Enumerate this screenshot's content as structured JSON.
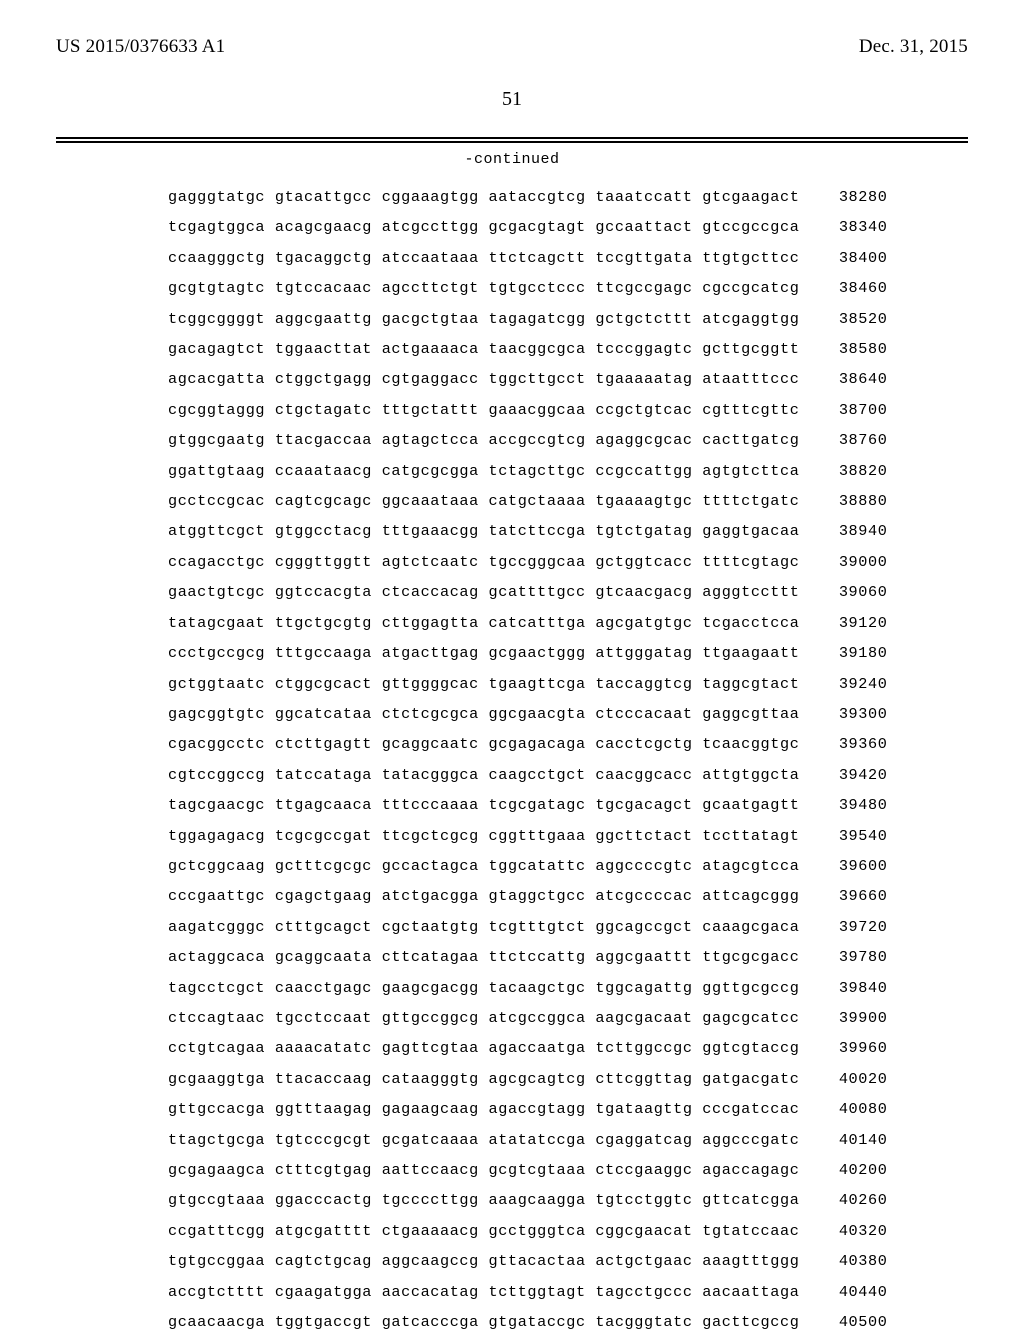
{
  "header": {
    "pub_number": "US 2015/0376633 A1",
    "pub_date": "Dec. 31, 2015"
  },
  "page_number": "51",
  "continued_label": "-continued",
  "sequence": {
    "group_len": 10,
    "groups_per_row": 6,
    "rows": [
      {
        "groups": [
          "gagggtatgc",
          "gtacattgcc",
          "cggaaagtgg",
          "aataccgtcg",
          "taaatccatt",
          "gtcgaagact"
        ],
        "pos": 38280
      },
      {
        "groups": [
          "tcgagtggca",
          "acagcgaacg",
          "atcgccttgg",
          "gcgacgtagt",
          "gccaattact",
          "gtccgccgca"
        ],
        "pos": 38340
      },
      {
        "groups": [
          "ccaagggctg",
          "tgacaggctg",
          "atccaataaa",
          "ttctcagctt",
          "tccgttgata",
          "ttgtgcttcc"
        ],
        "pos": 38400
      },
      {
        "groups": [
          "gcgtgtagtc",
          "tgtccacaac",
          "agccttctgt",
          "tgtgcctccc",
          "ttcgccgagc",
          "cgccgcatcg"
        ],
        "pos": 38460
      },
      {
        "groups": [
          "tcggcggggt",
          "aggcgaattg",
          "gacgctgtaa",
          "tagagatcgg",
          "gctgctcttt",
          "atcgaggtgg"
        ],
        "pos": 38520
      },
      {
        "groups": [
          "gacagagtct",
          "tggaacttat",
          "actgaaaaca",
          "taacggcgca",
          "tcccggagtc",
          "gcttgcggtt"
        ],
        "pos": 38580
      },
      {
        "groups": [
          "agcacgatta",
          "ctggctgagg",
          "cgtgaggacc",
          "tggcttgcct",
          "tgaaaaatag",
          "ataatttccc"
        ],
        "pos": 38640
      },
      {
        "groups": [
          "cgcggtaggg",
          "ctgctagatc",
          "tttgctattt",
          "gaaacggcaa",
          "ccgctgtcac",
          "cgtttcgttc"
        ],
        "pos": 38700
      },
      {
        "groups": [
          "gtggcgaatg",
          "ttacgaccaa",
          "agtagctcca",
          "accgccgtcg",
          "agaggcgcac",
          "cacttgatcg"
        ],
        "pos": 38760
      },
      {
        "groups": [
          "ggattgtaag",
          "ccaaataacg",
          "catgcgcgga",
          "tctagcttgc",
          "ccgccattgg",
          "agtgtcttca"
        ],
        "pos": 38820
      },
      {
        "groups": [
          "gcctccgcac",
          "cagtcgcagc",
          "ggcaaataaa",
          "catgctaaaa",
          "tgaaaagtgc",
          "ttttctgatc"
        ],
        "pos": 38880
      },
      {
        "groups": [
          "atggttcgct",
          "gtggcctacg",
          "tttgaaacgg",
          "tatcttccga",
          "tgtctgatag",
          "gaggtgacaa"
        ],
        "pos": 38940
      },
      {
        "groups": [
          "ccagacctgc",
          "cgggttggtt",
          "agtctcaatc",
          "tgccgggcaa",
          "gctggtcacc",
          "ttttcgtagc"
        ],
        "pos": 39000
      },
      {
        "groups": [
          "gaactgtcgc",
          "ggtccacgta",
          "ctcaccacag",
          "gcattttgcc",
          "gtcaacgacg",
          "agggtccttt"
        ],
        "pos": 39060
      },
      {
        "groups": [
          "tatagcgaat",
          "ttgctgcgtg",
          "cttggagtta",
          "catcatttga",
          "agcgatgtgc",
          "tcgacctcca"
        ],
        "pos": 39120
      },
      {
        "groups": [
          "ccctgccgcg",
          "tttgccaaga",
          "atgacttgag",
          "gcgaactggg",
          "attgggatag",
          "ttgaagaatt"
        ],
        "pos": 39180
      },
      {
        "groups": [
          "gctggtaatc",
          "ctggcgcact",
          "gttggggcac",
          "tgaagttcga",
          "taccaggtcg",
          "taggcgtact"
        ],
        "pos": 39240
      },
      {
        "groups": [
          "gagcggtgtc",
          "ggcatcataa",
          "ctctcgcgca",
          "ggcgaacgta",
          "ctcccacaat",
          "gaggcgttaa"
        ],
        "pos": 39300
      },
      {
        "groups": [
          "cgacggcctc",
          "ctcttgagtt",
          "gcaggcaatc",
          "gcgagacaga",
          "cacctcgctg",
          "tcaacggtgc"
        ],
        "pos": 39360
      },
      {
        "groups": [
          "cgtccggccg",
          "tatccataga",
          "tatacgggca",
          "caagcctgct",
          "caacggcacc",
          "attgtggcta"
        ],
        "pos": 39420
      },
      {
        "groups": [
          "tagcgaacgc",
          "ttgagcaaca",
          "tttcccaaaa",
          "tcgcgatagc",
          "tgcgacagct",
          "gcaatgagtt"
        ],
        "pos": 39480
      },
      {
        "groups": [
          "tggagagacg",
          "tcgcgccgat",
          "ttcgctcgcg",
          "cggtttgaaa",
          "ggcttctact",
          "tccttatagt"
        ],
        "pos": 39540
      },
      {
        "groups": [
          "gctcggcaag",
          "gctttcgcgc",
          "gccactagca",
          "tggcatattc",
          "aggccccgtc",
          "atagcgtcca"
        ],
        "pos": 39600
      },
      {
        "groups": [
          "cccgaattgc",
          "cgagctgaag",
          "atctgacgga",
          "gtaggctgcc",
          "atcgccccac",
          "attcagcggg"
        ],
        "pos": 39660
      },
      {
        "groups": [
          "aagatcgggc",
          "ctttgcagct",
          "cgctaatgtg",
          "tcgtttgtct",
          "ggcagccgct",
          "caaagcgaca"
        ],
        "pos": 39720
      },
      {
        "groups": [
          "actaggcaca",
          "gcaggcaata",
          "cttcatagaa",
          "ttctccattg",
          "aggcgaattt",
          "ttgcgcgacc"
        ],
        "pos": 39780
      },
      {
        "groups": [
          "tagcctcgct",
          "caacctgagc",
          "gaagcgacgg",
          "tacaagctgc",
          "tggcagattg",
          "ggttgcgccg"
        ],
        "pos": 39840
      },
      {
        "groups": [
          "ctccagtaac",
          "tgcctccaat",
          "gttgccggcg",
          "atcgccggca",
          "aagcgacaat",
          "gagcgcatcc"
        ],
        "pos": 39900
      },
      {
        "groups": [
          "cctgtcagaa",
          "aaaacatatc",
          "gagttcgtaa",
          "agaccaatga",
          "tcttggccgc",
          "ggtcgtaccg"
        ],
        "pos": 39960
      },
      {
        "groups": [
          "gcgaaggtga",
          "ttacaccaag",
          "cataagggtg",
          "agcgcagtcg",
          "cttcggttag",
          "gatgacgatc"
        ],
        "pos": 40020
      },
      {
        "groups": [
          "gttgccacga",
          "ggtttaagag",
          "gagaagcaag",
          "agaccgtagg",
          "tgataagttg",
          "cccgatccac"
        ],
        "pos": 40080
      },
      {
        "groups": [
          "ttagctgcga",
          "tgtcccgcgt",
          "gcgatcaaaa",
          "atatatccga",
          "cgaggatcag",
          "aggcccgatc"
        ],
        "pos": 40140
      },
      {
        "groups": [
          "gcgagaagca",
          "ctttcgtgag",
          "aattccaacg",
          "gcgtcgtaaa",
          "ctccgaaggc",
          "agaccagagc"
        ],
        "pos": 40200
      },
      {
        "groups": [
          "gtgccgtaaa",
          "ggacccactg",
          "tgccccttgg",
          "aaagcaagga",
          "tgtcctggtc",
          "gttcatcgga"
        ],
        "pos": 40260
      },
      {
        "groups": [
          "ccgatttcgg",
          "atgcgatttt",
          "ctgaaaaacg",
          "gcctgggtca",
          "cggcgaacat",
          "tgtatccaac"
        ],
        "pos": 40320
      },
      {
        "groups": [
          "tgtgccggaa",
          "cagtctgcag",
          "aggcaagccg",
          "gttacactaa",
          "actgctgaac",
          "aaagtttggg"
        ],
        "pos": 40380
      },
      {
        "groups": [
          "accgtctttt",
          "cgaagatgga",
          "aaccacatag",
          "tcttggtagt",
          "tagcctgccc",
          "aacaattaga"
        ],
        "pos": 40440
      },
      {
        "groups": [
          "gcaacaacga",
          "tggtgaccgt",
          "gatcacccga",
          "gtgataccgc",
          "tacgggtatc",
          "gacttcgccg"
        ],
        "pos": 40500
      }
    ]
  }
}
